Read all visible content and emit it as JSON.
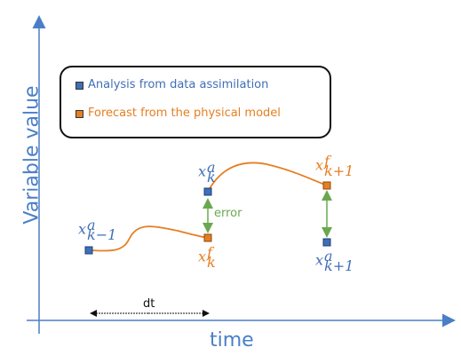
{
  "axes": {
    "y_title": "Variable value",
    "x_title": "time"
  },
  "legend": {
    "analysis": {
      "label": "Analysis from data assimilation",
      "color": "#3f6fb6"
    },
    "forecast": {
      "label": "Forecast from the physical model",
      "color": "#e67e22"
    }
  },
  "labels": {
    "xa_km1": {
      "base": "x",
      "sup": "a",
      "sub": "k−1"
    },
    "xa_k": {
      "base": "x",
      "sup": "a",
      "sub": "k"
    },
    "xf_k": {
      "base": "x",
      "sup": "f",
      "sub": "k"
    },
    "xf_kp1": {
      "base": "x",
      "sup": "f",
      "sub": "k+1"
    },
    "xa_kp1": {
      "base": "x",
      "sup": "a",
      "sub": "k+1"
    },
    "error": "error",
    "dt": "dt"
  },
  "colors": {
    "axis": "#4a7fc7",
    "curve": "#e67e22",
    "error_arrow": "#6aa84f",
    "analysis_marker": "#3f6fb6",
    "forecast_marker": "#e67e22"
  }
}
